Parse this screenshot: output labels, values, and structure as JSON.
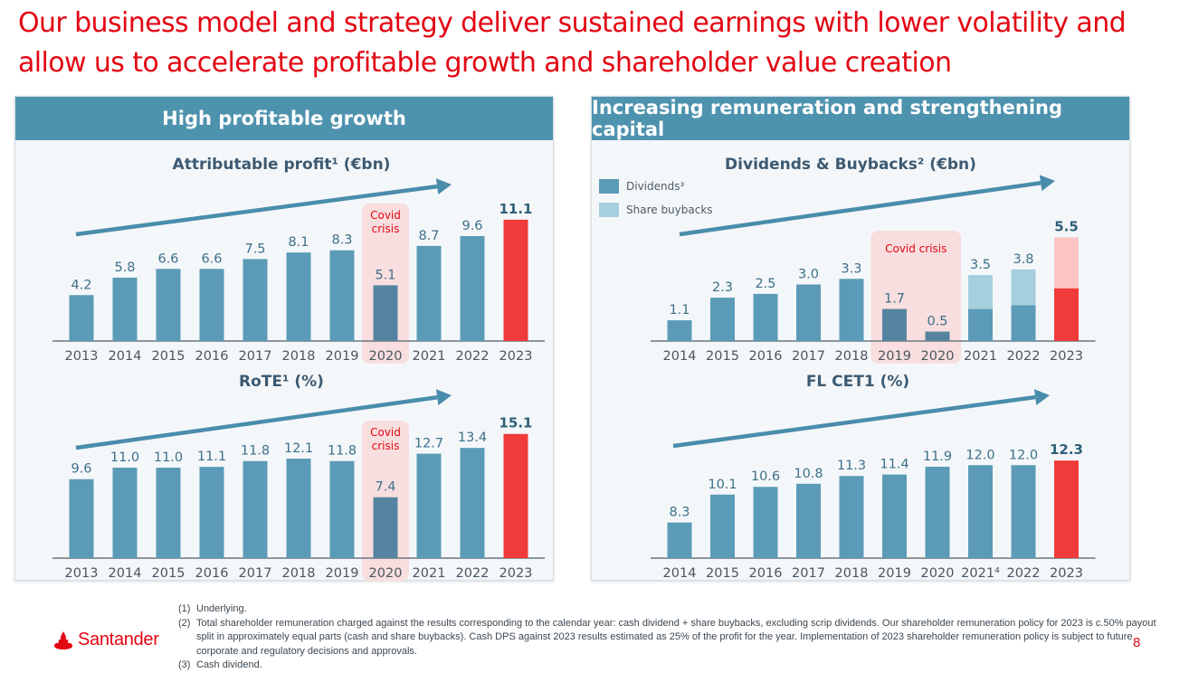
{
  "title": "Our business model and strategy deliver sustained earnings with lower volatility and allow us to accelerate profitable growth and shareholder value creation",
  "panels": [
    {
      "header": "High profitable growth"
    },
    {
      "header": "Increasing remuneration and strengthening capital"
    }
  ],
  "legend": {
    "dividends": "Dividends³",
    "buybacks": "Share buybacks"
  },
  "colors": {
    "bar": "#5b9bb8",
    "highlight": "#ef3b39",
    "highlight_light": "#fbc5c5",
    "buyback": "#a5cfde",
    "covid_bar": "#5684a0",
    "covid_band": "#f8dede",
    "arrow": "#4a8cac",
    "brand": "#e30613"
  },
  "chart_data": [
    {
      "id": "profit",
      "type": "bar",
      "title": "Attributable profit¹ (€bn)",
      "categories": [
        "2013",
        "2014",
        "2015",
        "2016",
        "2017",
        "2018",
        "2019",
        "2020",
        "2021",
        "2022",
        "2023"
      ],
      "values": [
        4.2,
        5.8,
        6.6,
        6.6,
        7.5,
        8.1,
        8.3,
        5.1,
        8.7,
        9.6,
        11.1
      ],
      "labels": [
        "4.2",
        "5.8",
        "6.6",
        "6.6",
        "7.5",
        "8.1",
        "8.3",
        "5.1",
        "8.7",
        "9.6",
        "11.1"
      ],
      "highlight_index": 10,
      "covid_index": 7,
      "covid_label": [
        "Covid",
        "crisis"
      ],
      "ylim": [
        0,
        12
      ]
    },
    {
      "id": "rote",
      "type": "bar",
      "title": "RoTE¹ (%)",
      "categories": [
        "2013",
        "2014",
        "2015",
        "2016",
        "2017",
        "2018",
        "2019",
        "2020",
        "2021",
        "2022",
        "2023"
      ],
      "values": [
        9.6,
        11.0,
        11.0,
        11.1,
        11.8,
        12.1,
        11.8,
        7.4,
        12.7,
        13.4,
        15.1
      ],
      "labels": [
        "9.6",
        "11.0",
        "11.0",
        "11.1",
        "11.8",
        "12.1",
        "11.8",
        "7.4",
        "12.7",
        "13.4",
        "15.1"
      ],
      "highlight_index": 10,
      "covid_index": 7,
      "covid_label": [
        "Covid",
        "crisis"
      ],
      "ylim": [
        0,
        16.5
      ]
    },
    {
      "id": "dividends",
      "type": "stacked-bar",
      "title": "Dividends & Buybacks² (€bn)",
      "categories": [
        "2014",
        "2015",
        "2016",
        "2017",
        "2018",
        "2019",
        "2020",
        "2021",
        "2022",
        "2023"
      ],
      "series": [
        {
          "name": "Dividends³",
          "values": [
            1.1,
            2.3,
            2.5,
            3.0,
            3.3,
            1.7,
            0.5,
            1.7,
            1.9,
            2.8
          ]
        },
        {
          "name": "Share buybacks",
          "values": [
            0,
            0,
            0,
            0,
            0,
            0,
            0,
            1.8,
            1.9,
            2.7
          ]
        }
      ],
      "labels": [
        "1.1",
        "2.3",
        "2.5",
        "3.0",
        "3.3",
        "1.7",
        "0.5",
        "3.5",
        "3.8",
        "5.5"
      ],
      "highlight_index": 9,
      "covid_range": [
        5,
        6
      ],
      "covid_label": [
        "Covid crisis"
      ],
      "ylim": [
        0,
        6
      ]
    },
    {
      "id": "cet1",
      "type": "bar",
      "title": "FL CET1 (%)",
      "categories": [
        "2014",
        "2015",
        "2016",
        "2017",
        "2018",
        "2019",
        "2020",
        "2021⁴",
        "2022",
        "2023"
      ],
      "values": [
        8.3,
        10.1,
        10.6,
        10.8,
        11.3,
        11.4,
        11.9,
        12.0,
        12.0,
        12.3
      ],
      "labels": [
        "8.3",
        "10.1",
        "10.6",
        "10.8",
        "11.3",
        "11.4",
        "11.9",
        "12.0",
        "12.0",
        "12.3"
      ],
      "highlight_index": 9,
      "ylim": [
        6,
        13.3
      ]
    }
  ],
  "footer": {
    "logo": "Santander",
    "page": "8",
    "footnotes": [
      {
        "num": "(1)",
        "text": "Underlying."
      },
      {
        "num": "(2)",
        "text": "Total shareholder remuneration charged against the results corresponding to the calendar year: cash dividend + share buybacks, excluding scrip dividends. Our shareholder remuneration policy for 2023 is c.50% payout split in approximately equal parts (cash and share buybacks). Cash DPS against 2023 results estimated as 25% of the profit for the year. Implementation of 2023 shareholder remuneration policy is subject to future corporate and regulatory decisions and approvals."
      },
      {
        "num": "(3)",
        "text": "Cash dividend."
      }
    ]
  }
}
